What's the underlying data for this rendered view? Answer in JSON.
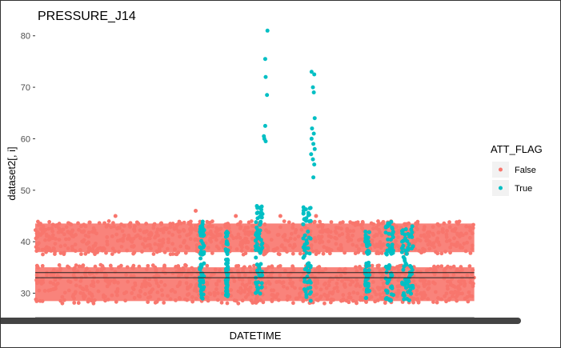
{
  "chart_data": {
    "type": "scatter",
    "title": "PRESSURE_J14",
    "xlabel": "DATETIME",
    "ylabel": "dataset2[, i]",
    "ylim": [
      26.5,
      84
    ],
    "yticks": [
      30,
      40,
      50,
      60,
      70,
      80
    ],
    "ytick_labels": [
      "30",
      "40",
      "50",
      "60",
      "70",
      "80"
    ],
    "x_tick_labels_visible": false,
    "hlines": [
      34,
      33,
      25
    ],
    "grid": false,
    "legend": {
      "title": "ATT_FLAG",
      "position": "right",
      "entries": [
        {
          "label": "False",
          "color": "#F8766D"
        },
        {
          "label": "True",
          "color": "#00BFC4"
        }
      ]
    },
    "series": [
      {
        "name": "False",
        "color": "#F8766D",
        "bands": [
          {
            "ymin": 37.5,
            "ymax": 44,
            "density": "dense"
          },
          {
            "ymin": 28,
            "ymax": 35.5,
            "density": "dense"
          }
        ],
        "outliers": [
          {
            "x": 0.36,
            "y": 46
          },
          {
            "x": 0.18,
            "y": 45
          },
          {
            "x": 0.45,
            "y": 45
          },
          {
            "x": 0.63,
            "y": 45
          },
          {
            "x": 0.55,
            "y": 45
          }
        ]
      },
      {
        "name": "True",
        "color": "#00BFC4",
        "clusters": [
          {
            "x": 0.374,
            "width": 0.01,
            "ymin": 28.5,
            "ymax": 44
          },
          {
            "x": 0.43,
            "width": 0.005,
            "ymin": 29,
            "ymax": 42
          },
          {
            "x": 0.502,
            "width": 0.016,
            "ymin": 29,
            "ymax": 47
          },
          {
            "x": 0.61,
            "width": 0.018,
            "ymin": 28.5,
            "ymax": 47
          },
          {
            "x": 0.745,
            "width": 0.01,
            "ymin": 29,
            "ymax": 42
          },
          {
            "x": 0.795,
            "width": 0.018,
            "ymin": 28.5,
            "ymax": 44
          },
          {
            "x": 0.835,
            "width": 0.025,
            "ymin": 28.5,
            "ymax": 43
          }
        ],
        "points": [
          {
            "x": 0.521,
            "y": 81
          },
          {
            "x": 0.516,
            "y": 75.5
          },
          {
            "x": 0.517,
            "y": 72
          },
          {
            "x": 0.52,
            "y": 68.5
          },
          {
            "x": 0.516,
            "y": 62.5
          },
          {
            "x": 0.513,
            "y": 60.5
          },
          {
            "x": 0.514,
            "y": 60
          },
          {
            "x": 0.517,
            "y": 59.5
          },
          {
            "x": 0.62,
            "y": 73
          },
          {
            "x": 0.626,
            "y": 72.5
          },
          {
            "x": 0.623,
            "y": 70
          },
          {
            "x": 0.625,
            "y": 69
          },
          {
            "x": 0.627,
            "y": 64
          },
          {
            "x": 0.621,
            "y": 62
          },
          {
            "x": 0.625,
            "y": 61
          },
          {
            "x": 0.62,
            "y": 60
          },
          {
            "x": 0.624,
            "y": 59
          },
          {
            "x": 0.627,
            "y": 58
          },
          {
            "x": 0.619,
            "y": 57
          },
          {
            "x": 0.623,
            "y": 56
          },
          {
            "x": 0.626,
            "y": 55
          },
          {
            "x": 0.624,
            "y": 52.5
          }
        ]
      }
    ]
  }
}
